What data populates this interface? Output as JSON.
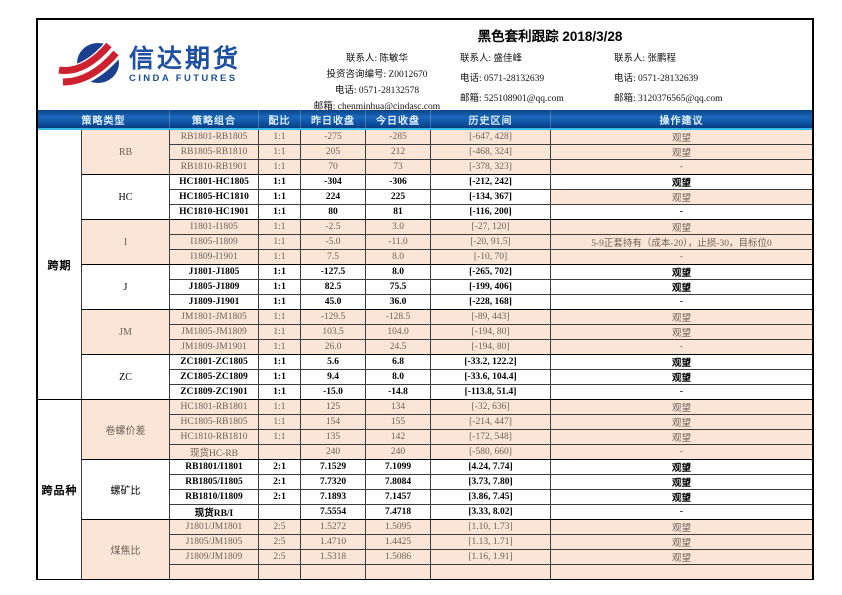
{
  "colors": {
    "logo_blue": "#1e4fa0",
    "logo_red": "#cf2030",
    "band_cyan": "#35b9ea",
    "row_pink": "#fbe5d6"
  },
  "header": {
    "logo": {
      "cn": "信达期货",
      "en": "CINDA FUTURES"
    },
    "title": "黑色套利跟踪 2018/3/28",
    "contacts": [
      {
        "lines": [
          "联系人: 陈敏华",
          "投资咨询编号: Z0012670",
          "电话: 0571-28132578",
          "邮箱: chenminhua@cindasc.com"
        ]
      },
      {
        "lines": [
          "联系人: 盛佳峰",
          "电话: 0571-28132639",
          "邮箱: 525108901@qq.com"
        ]
      },
      {
        "lines": [
          "联系人: 张鹏程",
          "电话: 0571-28132639",
          "邮箱: 3120376565@qq.com"
        ]
      }
    ]
  },
  "table": {
    "columns": [
      "策略类型",
      "策略组合",
      "配比",
      "昨日收盘",
      "今日收盘",
      "历史区间",
      "操作建议"
    ],
    "sections": [
      {
        "label": "跨期",
        "groups": [
          {
            "label": "RB",
            "tone": "pink",
            "rows": [
              {
                "combo": "RB1801-RB1805",
                "ratio": "1:1",
                "prev": "-275",
                "today": "-285",
                "range": "[-647, 428]",
                "advice": "观望"
              },
              {
                "combo": "RB1805-RB1810",
                "ratio": "1:1",
                "prev": "205",
                "today": "212",
                "range": "[-468, 324]",
                "advice": "观望"
              },
              {
                "combo": "RB1810-RB1901",
                "ratio": "1:1",
                "prev": "70",
                "today": "73",
                "range": "[-378, 323]",
                "advice": "-"
              }
            ]
          },
          {
            "label": "HC",
            "tone": "white",
            "rows": [
              {
                "combo": "HC1801-HC1805",
                "ratio": "1:1",
                "prev": "-304",
                "today": "-306",
                "range": "[-212, 242]",
                "advice": "观望"
              },
              {
                "combo": "HC1805-HC1810",
                "ratio": "1:1",
                "prev": "224",
                "today": "225",
                "range": "[-134, 367]",
                "advice": "观望",
                "advice_tone": "pink"
              },
              {
                "combo": "HC1810-HC1901",
                "ratio": "1:1",
                "prev": "80",
                "today": "81",
                "range": "[-116, 200]",
                "advice": "-"
              }
            ]
          },
          {
            "label": "I",
            "tone": "pink",
            "rows": [
              {
                "combo": "I1801-I1805",
                "ratio": "1:1",
                "prev": "-2.5",
                "today": "3.0",
                "range": "[-27, 120]",
                "advice": "观望"
              },
              {
                "combo": "I1805-I1809",
                "ratio": "1:1",
                "prev": "-5.0",
                "today": "-11.0",
                "range": "[-20, 91.5]",
                "advice": "5-9正套持有（成本-20），止损-30，目标位0"
              },
              {
                "combo": "I1809-I1901",
                "ratio": "1:1",
                "prev": "7.5",
                "today": "8.0",
                "range": "[-10, 70]",
                "advice": "-"
              }
            ]
          },
          {
            "label": "J",
            "tone": "white",
            "rows": [
              {
                "combo": "J1801-J1805",
                "ratio": "1:1",
                "prev": "-127.5",
                "today": "8.0",
                "range": "[-265, 702]",
                "advice": "观望"
              },
              {
                "combo": "J1805-J1809",
                "ratio": "1:1",
                "prev": "82.5",
                "today": "75.5",
                "range": "[-199, 406]",
                "advice": "观望"
              },
              {
                "combo": "J1809-J1901",
                "ratio": "1:1",
                "prev": "45.0",
                "today": "36.0",
                "range": "[-228, 168]",
                "advice": "-"
              }
            ]
          },
          {
            "label": "JM",
            "tone": "pink",
            "rows": [
              {
                "combo": "JM1801-JM1805",
                "ratio": "1:1",
                "prev": "-129.5",
                "today": "-128.5",
                "range": "[-89, 443]",
                "advice": "观望"
              },
              {
                "combo": "JM1805-JM1809",
                "ratio": "1:1",
                "prev": "103.5",
                "today": "104.0",
                "range": "[-194, 80]",
                "advice": "观望"
              },
              {
                "combo": "JM1809-JM1901",
                "ratio": "1:1",
                "prev": "26.0",
                "today": "24.5",
                "range": "[-194, 80]",
                "advice": "-"
              }
            ]
          },
          {
            "label": "ZC",
            "tone": "white",
            "rows": [
              {
                "combo": "ZC1801-ZC1805",
                "ratio": "1:1",
                "prev": "5.6",
                "today": "6.8",
                "range": "[-33.2, 122.2]",
                "advice": "观望"
              },
              {
                "combo": "ZC1805-ZC1809",
                "ratio": "1:1",
                "prev": "9.4",
                "today": "8.0",
                "range": "[-33.6, 104.4]",
                "advice": "观望"
              },
              {
                "combo": "ZC1809-ZC1901",
                "ratio": "1:1",
                "prev": "-15.0",
                "today": "-14.8",
                "range": "[-113.8, 51.4]",
                "advice": "-"
              }
            ]
          }
        ]
      },
      {
        "label": "跨品种",
        "groups": [
          {
            "label": "卷螺价差",
            "tone": "pink",
            "rows": [
              {
                "combo": "HC1801-RB1801",
                "ratio": "1:1",
                "prev": "125",
                "today": "134",
                "range": "[-32, 636]",
                "advice": "观望"
              },
              {
                "combo": "HC1805-RB1805",
                "ratio": "1:1",
                "prev": "154",
                "today": "155",
                "range": "[-214, 447]",
                "advice": "观望"
              },
              {
                "combo": "HC1810-RB1810",
                "ratio": "1:1",
                "prev": "135",
                "today": "142",
                "range": "[-172, 548]",
                "advice": "观望"
              },
              {
                "combo": "现货HC-RB",
                "ratio": "",
                "prev": "240",
                "today": "240",
                "range": "[-580, 660]",
                "advice": "-"
              }
            ]
          },
          {
            "label": "螺矿比",
            "tone": "white",
            "rows": [
              {
                "combo": "RB1801/I1801",
                "ratio": "2:1",
                "prev": "7.1529",
                "today": "7.1099",
                "range": "[4.24, 7.74]",
                "advice": "观望"
              },
              {
                "combo": "RB1805/I1805",
                "ratio": "2:1",
                "prev": "7.7320",
                "today": "7.8084",
                "range": "[3.73, 7.80]",
                "advice": "观望"
              },
              {
                "combo": "RB1810/I1809",
                "ratio": "2:1",
                "prev": "7.1893",
                "today": "7.1457",
                "range": "[3.86, 7.45]",
                "advice": "观望"
              },
              {
                "combo": "现货RB/I",
                "ratio": "",
                "prev": "7.5554",
                "today": "7.4718",
                "range": "[3.33, 8.02]",
                "advice": "-"
              }
            ]
          },
          {
            "label": "煤焦比",
            "tone": "pink",
            "rows": [
              {
                "combo": "J1801/JM1801",
                "ratio": "2:5",
                "prev": "1.5272",
                "today": "1.5095",
                "range": "[1.10, 1.73]",
                "advice": "观望"
              },
              {
                "combo": "J1805/JM1805",
                "ratio": "2:5",
                "prev": "1.4710",
                "today": "1.4425",
                "range": "[1.13, 1.71]",
                "advice": "观望"
              },
              {
                "combo": "J1809/JM1809",
                "ratio": "2:5",
                "prev": "1.5318",
                "today": "1.5086",
                "range": "[1.16, 1.91]",
                "advice": "观望"
              },
              {
                "combo": "",
                "ratio": "",
                "prev": "",
                "today": "",
                "range": "",
                "advice": ""
              }
            ]
          }
        ]
      }
    ]
  }
}
